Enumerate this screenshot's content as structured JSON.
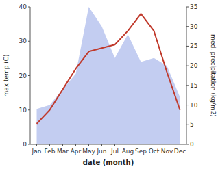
{
  "chart_data": {
    "type": "line",
    "categories": [
      "Jan",
      "Feb",
      "Mar",
      "Apr",
      "May",
      "Jun",
      "Jul",
      "Aug",
      "Sep",
      "Oct",
      "Nov",
      "Dec"
    ],
    "xlabel": "date (month)",
    "ylabel": "max temp (C)",
    "y2label": "med. precipitation (kg/m2)",
    "ylim": [
      0,
      40
    ],
    "yticks": [
      0,
      10,
      20,
      30,
      40
    ],
    "y2lim": [
      0,
      35
    ],
    "y2ticks": [
      0,
      5,
      10,
      15,
      20,
      25,
      30,
      35
    ],
    "grid": false,
    "series": [
      {
        "type": "line",
        "color": "#c0392b",
        "values": [
          6,
          10,
          16,
          22,
          27,
          28,
          29,
          33,
          38,
          33,
          21,
          10
        ]
      },
      {
        "type": "area",
        "color": "#b8c4ee",
        "axis": "y2",
        "values": [
          9,
          10,
          14,
          18,
          35,
          30,
          22,
          28,
          21,
          22,
          20,
          12
        ]
      }
    ]
  }
}
